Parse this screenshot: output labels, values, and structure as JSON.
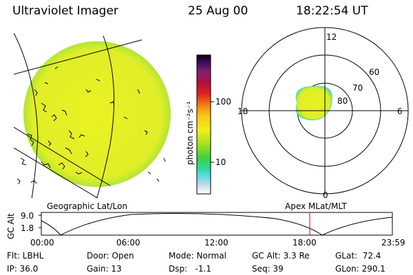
{
  "header": {
    "title": "Ultraviolet Imager",
    "date": "25 Aug 00",
    "time": "18:22:54 UT"
  },
  "colorbar": {
    "unit_label": "photon cm⁻²s⁻¹",
    "ticks": [
      "100",
      "10"
    ]
  },
  "polar_plot": {
    "mlt_labels": [
      "12",
      "18",
      "6",
      "0"
    ],
    "lat_labels": [
      "60",
      "70",
      "80"
    ]
  },
  "panel_labels": {
    "left": "Geographic Lat/Lon",
    "right": "Apex MLat/MLT"
  },
  "altitude_plot": {
    "axis_label": "GC Alt",
    "y_ticks": [
      "9.0",
      "1.8"
    ],
    "x_ticks": [
      "00:00",
      "06:00",
      "12:00",
      "18:00",
      "23:59"
    ]
  },
  "info": {
    "filter": "Flt: LBHL",
    "ip": "IP: 36.0",
    "door": "Door: Open",
    "gain": "Gain: 13",
    "mode": "Mode: Normal",
    "dsp": "Dsp:   -1.1",
    "gc_alt": "GC Alt: 3.3 Re",
    "seq": "Seq: 39",
    "glat": "GLat:  72.4",
    "glon": "GLon: 290.1"
  },
  "colors": {
    "emission_fill": "#e8f020",
    "emission_edge": "#50e0c8",
    "marker": "#e00000"
  }
}
